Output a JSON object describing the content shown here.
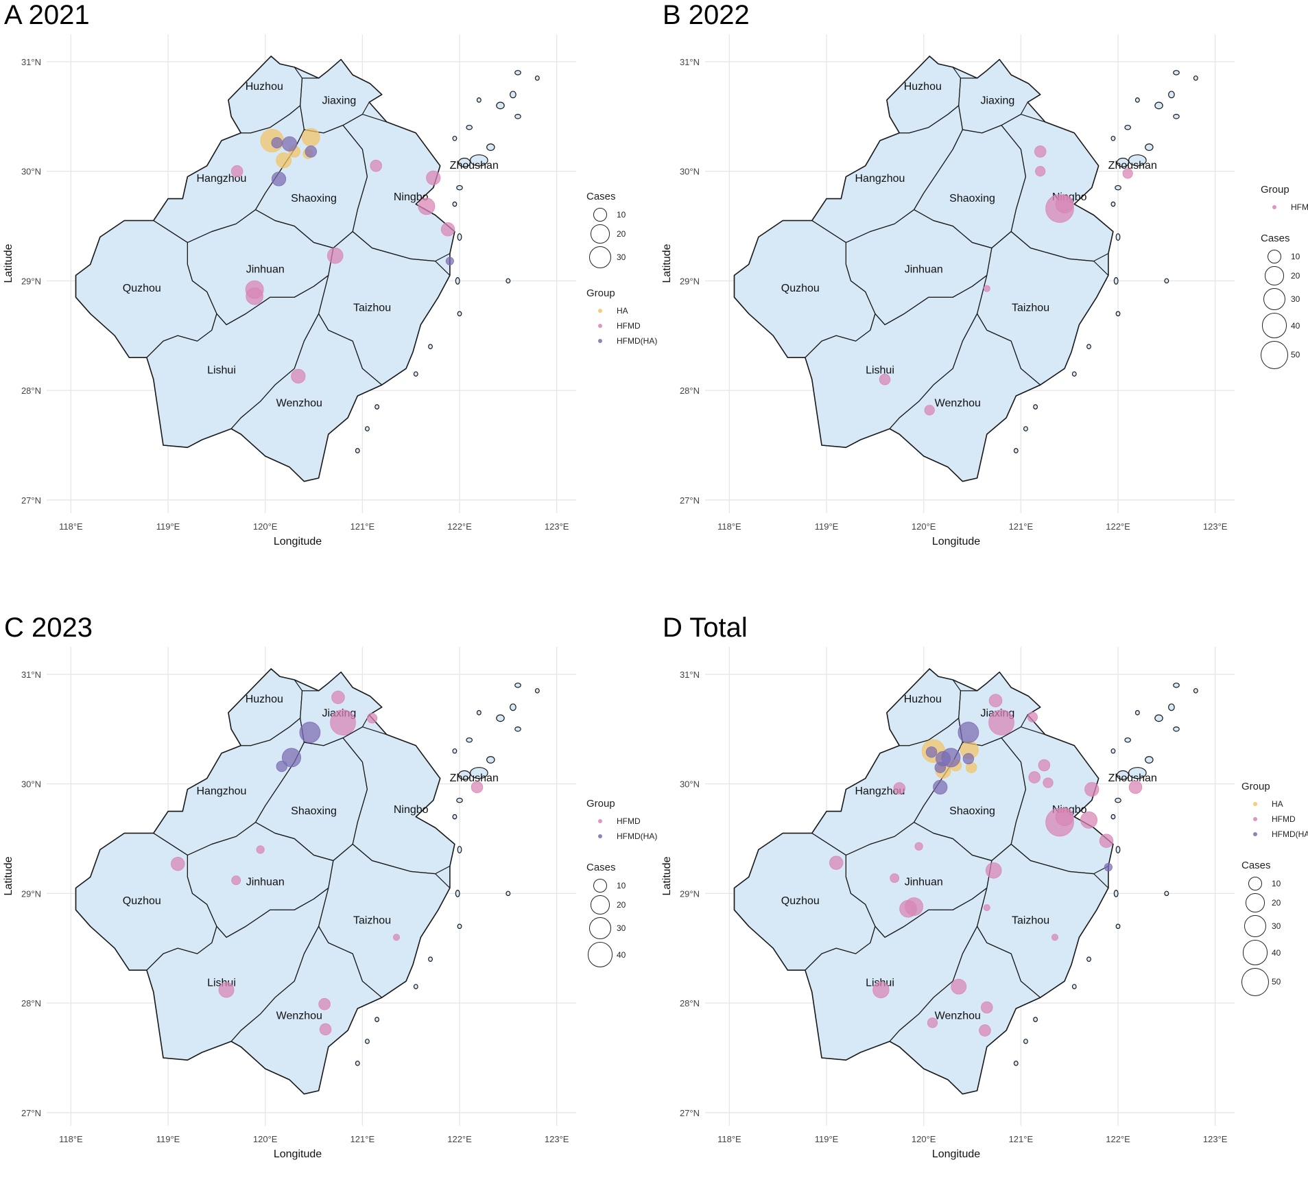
{
  "axes": {
    "x_label": "Longitude",
    "y_label": "Latitude",
    "x_ticks": [
      "118°E",
      "119°E",
      "120°E",
      "121°E",
      "122°E",
      "123°E"
    ],
    "y_ticks": [
      "27°N",
      "28°N",
      "29°N",
      "30°N",
      "31°N"
    ],
    "x_range": [
      117.75,
      123.2
    ],
    "y_range": [
      26.88,
      31.25
    ]
  },
  "regions": [
    {
      "name": "Huzhou",
      "lon": 119.99,
      "lat": 30.77
    },
    {
      "name": "Jiaxing",
      "lon": 120.76,
      "lat": 30.64
    },
    {
      "name": "Hangzhou",
      "lon": 119.55,
      "lat": 29.93
    },
    {
      "name": "Shaoxing",
      "lon": 120.5,
      "lat": 29.75
    },
    {
      "name": "Ningbo",
      "lon": 121.5,
      "lat": 29.76
    },
    {
      "name": "Zhoushan",
      "lon": 122.15,
      "lat": 30.05
    },
    {
      "name": "Jinhuan",
      "lon": 120.0,
      "lat": 29.1
    },
    {
      "name": "Quzhou",
      "lon": 118.73,
      "lat": 28.93
    },
    {
      "name": "Taizhou",
      "lon": 121.1,
      "lat": 28.75
    },
    {
      "name": "Lishui",
      "lon": 119.55,
      "lat": 28.18
    },
    {
      "name": "Wenzhou",
      "lon": 120.35,
      "lat": 27.88
    }
  ],
  "colors": {
    "land": "#d7e8f6",
    "border": "#1a1a1a",
    "grid": "#e6e6e6",
    "HA": "#f2c464",
    "HFMD": "#d884b4",
    "HFMD(HA)": "#7a6bb1"
  },
  "panels": [
    {
      "id": "A",
      "title": "A 2021",
      "legend_order": "cases-first",
      "groups": [
        "HA",
        "HFMD",
        "HFMD(HA)"
      ],
      "case_breaks": [
        10,
        20,
        30
      ],
      "chart_data": {
        "type": "scatter",
        "points": [
          {
            "lon": 120.07,
            "lat": 30.28,
            "cases": 32,
            "group": "HA"
          },
          {
            "lon": 120.47,
            "lat": 30.31,
            "cases": 18,
            "group": "HA"
          },
          {
            "lon": 120.19,
            "lat": 30.1,
            "cases": 12,
            "group": "HA"
          },
          {
            "lon": 120.3,
            "lat": 30.18,
            "cases": 6,
            "group": "HA"
          },
          {
            "lon": 120.44,
            "lat": 30.16,
            "cases": 4,
            "group": "HA"
          },
          {
            "lon": 120.12,
            "lat": 30.26,
            "cases": 5,
            "group": "HFMD(HA)"
          },
          {
            "lon": 120.25,
            "lat": 30.25,
            "cases": 11,
            "group": "HFMD(HA)"
          },
          {
            "lon": 120.47,
            "lat": 30.18,
            "cases": 6,
            "group": "HFMD(HA)"
          },
          {
            "lon": 120.14,
            "lat": 29.93,
            "cases": 10,
            "group": "HFMD(HA)"
          },
          {
            "lon": 121.9,
            "lat": 29.18,
            "cases": 2,
            "group": "HFMD(HA)"
          },
          {
            "lon": 119.71,
            "lat": 30.0,
            "cases": 6,
            "group": "HFMD"
          },
          {
            "lon": 121.14,
            "lat": 30.05,
            "cases": 6,
            "group": "HFMD"
          },
          {
            "lon": 121.73,
            "lat": 29.94,
            "cases": 10,
            "group": "HFMD"
          },
          {
            "lon": 121.66,
            "lat": 29.68,
            "cases": 15,
            "group": "HFMD"
          },
          {
            "lon": 121.88,
            "lat": 29.47,
            "cases": 9,
            "group": "HFMD"
          },
          {
            "lon": 120.72,
            "lat": 29.23,
            "cases": 13,
            "group": "HFMD"
          },
          {
            "lon": 119.89,
            "lat": 28.92,
            "cases": 18,
            "group": "HFMD"
          },
          {
            "lon": 119.89,
            "lat": 28.86,
            "cases": 16,
            "group": "HFMD"
          },
          {
            "lon": 120.34,
            "lat": 28.13,
            "cases": 10,
            "group": "HFMD"
          }
        ]
      }
    },
    {
      "id": "B",
      "title": "B 2022",
      "legend_order": "group-first",
      "groups": [
        "HFMD"
      ],
      "case_breaks": [
        10,
        20,
        30,
        40,
        50
      ],
      "chart_data": {
        "type": "scatter",
        "points": [
          {
            "lon": 121.4,
            "lat": 29.66,
            "cases": 50,
            "group": "HFMD"
          },
          {
            "lon": 121.45,
            "lat": 29.7,
            "cases": 18,
            "group": "HFMD"
          },
          {
            "lon": 121.2,
            "lat": 30.18,
            "cases": 6,
            "group": "HFMD"
          },
          {
            "lon": 121.2,
            "lat": 30.0,
            "cases": 4,
            "group": "HFMD"
          },
          {
            "lon": 122.1,
            "lat": 29.98,
            "cases": 4,
            "group": "HFMD"
          },
          {
            "lon": 120.65,
            "lat": 28.93,
            "cases": 1,
            "group": "HFMD"
          },
          {
            "lon": 119.6,
            "lat": 28.1,
            "cases": 5,
            "group": "HFMD"
          },
          {
            "lon": 120.06,
            "lat": 27.82,
            "cases": 4,
            "group": "HFMD"
          }
        ]
      }
    },
    {
      "id": "C",
      "title": "C 2023",
      "legend_order": "group-first",
      "groups": [
        "HFMD",
        "HFMD(HA)"
      ],
      "case_breaks": [
        10,
        20,
        30,
        40
      ],
      "chart_data": {
        "type": "scatter",
        "points": [
          {
            "lon": 120.8,
            "lat": 30.56,
            "cases": 40,
            "group": "HFMD"
          },
          {
            "lon": 120.75,
            "lat": 30.79,
            "cases": 8,
            "group": "HFMD"
          },
          {
            "lon": 121.1,
            "lat": 30.6,
            "cases": 4,
            "group": "HFMD"
          },
          {
            "lon": 122.18,
            "lat": 29.97,
            "cases": 6,
            "group": "HFMD"
          },
          {
            "lon": 119.1,
            "lat": 29.27,
            "cases": 9,
            "group": "HFMD"
          },
          {
            "lon": 119.95,
            "lat": 29.4,
            "cases": 2,
            "group": "HFMD"
          },
          {
            "lon": 119.7,
            "lat": 29.12,
            "cases": 3,
            "group": "HFMD"
          },
          {
            "lon": 121.35,
            "lat": 28.6,
            "cases": 1,
            "group": "HFMD"
          },
          {
            "lon": 119.6,
            "lat": 28.12,
            "cases": 12,
            "group": "HFMD"
          },
          {
            "lon": 120.61,
            "lat": 27.99,
            "cases": 6,
            "group": "HFMD"
          },
          {
            "lon": 120.62,
            "lat": 27.76,
            "cases": 6,
            "group": "HFMD"
          },
          {
            "lon": 120.46,
            "lat": 30.47,
            "cases": 25,
            "group": "HFMD(HA)"
          },
          {
            "lon": 120.27,
            "lat": 30.24,
            "cases": 20,
            "group": "HFMD(HA)"
          },
          {
            "lon": 120.17,
            "lat": 30.16,
            "cases": 5,
            "group": "HFMD(HA)"
          }
        ]
      }
    },
    {
      "id": "D",
      "title": "D Total",
      "legend_order": "group-first",
      "groups": [
        "HA",
        "HFMD",
        "HFMD(HA)"
      ],
      "case_breaks": [
        10,
        20,
        30,
        40,
        50
      ],
      "chart_data": {
        "type": "scatter",
        "points": [
          {
            "lon": 120.1,
            "lat": 30.3,
            "cases": 32,
            "group": "HA"
          },
          {
            "lon": 120.47,
            "lat": 30.31,
            "cases": 18,
            "group": "HA"
          },
          {
            "lon": 120.2,
            "lat": 30.12,
            "cases": 12,
            "group": "HA"
          },
          {
            "lon": 120.33,
            "lat": 30.17,
            "cases": 6,
            "group": "HA"
          },
          {
            "lon": 120.49,
            "lat": 30.15,
            "cases": 5,
            "group": "HA"
          },
          {
            "lon": 120.08,
            "lat": 30.29,
            "cases": 5,
            "group": "HFMD(HA)"
          },
          {
            "lon": 120.28,
            "lat": 30.24,
            "cases": 20,
            "group": "HFMD(HA)"
          },
          {
            "lon": 120.2,
            "lat": 30.23,
            "cases": 11,
            "group": "HFMD(HA)"
          },
          {
            "lon": 120.17,
            "lat": 30.15,
            "cases": 5,
            "group": "HFMD(HA)"
          },
          {
            "lon": 120.46,
            "lat": 30.47,
            "cases": 25,
            "group": "HFMD(HA)"
          },
          {
            "lon": 120.46,
            "lat": 30.23,
            "cases": 5,
            "group": "HFMD(HA)"
          },
          {
            "lon": 120.17,
            "lat": 29.97,
            "cases": 10,
            "group": "HFMD(HA)"
          },
          {
            "lon": 121.9,
            "lat": 29.24,
            "cases": 2,
            "group": "HFMD(HA)"
          },
          {
            "lon": 120.8,
            "lat": 30.56,
            "cases": 40,
            "group": "HFMD"
          },
          {
            "lon": 120.74,
            "lat": 30.76,
            "cases": 8,
            "group": "HFMD"
          },
          {
            "lon": 121.12,
            "lat": 30.61,
            "cases": 4,
            "group": "HFMD"
          },
          {
            "lon": 121.24,
            "lat": 30.17,
            "cases": 6,
            "group": "HFMD"
          },
          {
            "lon": 121.14,
            "lat": 30.06,
            "cases": 6,
            "group": "HFMD"
          },
          {
            "lon": 121.28,
            "lat": 30.01,
            "cases": 4,
            "group": "HFMD"
          },
          {
            "lon": 121.73,
            "lat": 29.95,
            "cases": 10,
            "group": "HFMD"
          },
          {
            "lon": 122.18,
            "lat": 29.97,
            "cases": 8,
            "group": "HFMD"
          },
          {
            "lon": 121.4,
            "lat": 29.65,
            "cases": 50,
            "group": "HFMD"
          },
          {
            "lon": 121.45,
            "lat": 29.7,
            "cases": 18,
            "group": "HFMD"
          },
          {
            "lon": 121.7,
            "lat": 29.67,
            "cases": 15,
            "group": "HFMD"
          },
          {
            "lon": 121.88,
            "lat": 29.48,
            "cases": 9,
            "group": "HFMD"
          },
          {
            "lon": 119.75,
            "lat": 29.96,
            "cases": 6,
            "group": "HFMD"
          },
          {
            "lon": 119.95,
            "lat": 29.43,
            "cases": 2,
            "group": "HFMD"
          },
          {
            "lon": 119.1,
            "lat": 29.28,
            "cases": 9,
            "group": "HFMD"
          },
          {
            "lon": 119.7,
            "lat": 29.14,
            "cases": 3,
            "group": "HFMD"
          },
          {
            "lon": 120.72,
            "lat": 29.21,
            "cases": 13,
            "group": "HFMD"
          },
          {
            "lon": 119.9,
            "lat": 28.88,
            "cases": 18,
            "group": "HFMD"
          },
          {
            "lon": 119.84,
            "lat": 28.86,
            "cases": 16,
            "group": "HFMD"
          },
          {
            "lon": 120.65,
            "lat": 28.87,
            "cases": 1,
            "group": "HFMD"
          },
          {
            "lon": 121.35,
            "lat": 28.6,
            "cases": 1,
            "group": "HFMD"
          },
          {
            "lon": 119.56,
            "lat": 28.12,
            "cases": 14,
            "group": "HFMD"
          },
          {
            "lon": 120.36,
            "lat": 28.15,
            "cases": 12,
            "group": "HFMD"
          },
          {
            "lon": 120.65,
            "lat": 27.96,
            "cases": 6,
            "group": "HFMD"
          },
          {
            "lon": 120.63,
            "lat": 27.75,
            "cases": 6,
            "group": "HFMD"
          },
          {
            "lon": 120.09,
            "lat": 27.82,
            "cases": 4,
            "group": "HFMD"
          }
        ]
      }
    }
  ],
  "legend": {
    "cases_title": "Cases",
    "group_title": "Group"
  }
}
